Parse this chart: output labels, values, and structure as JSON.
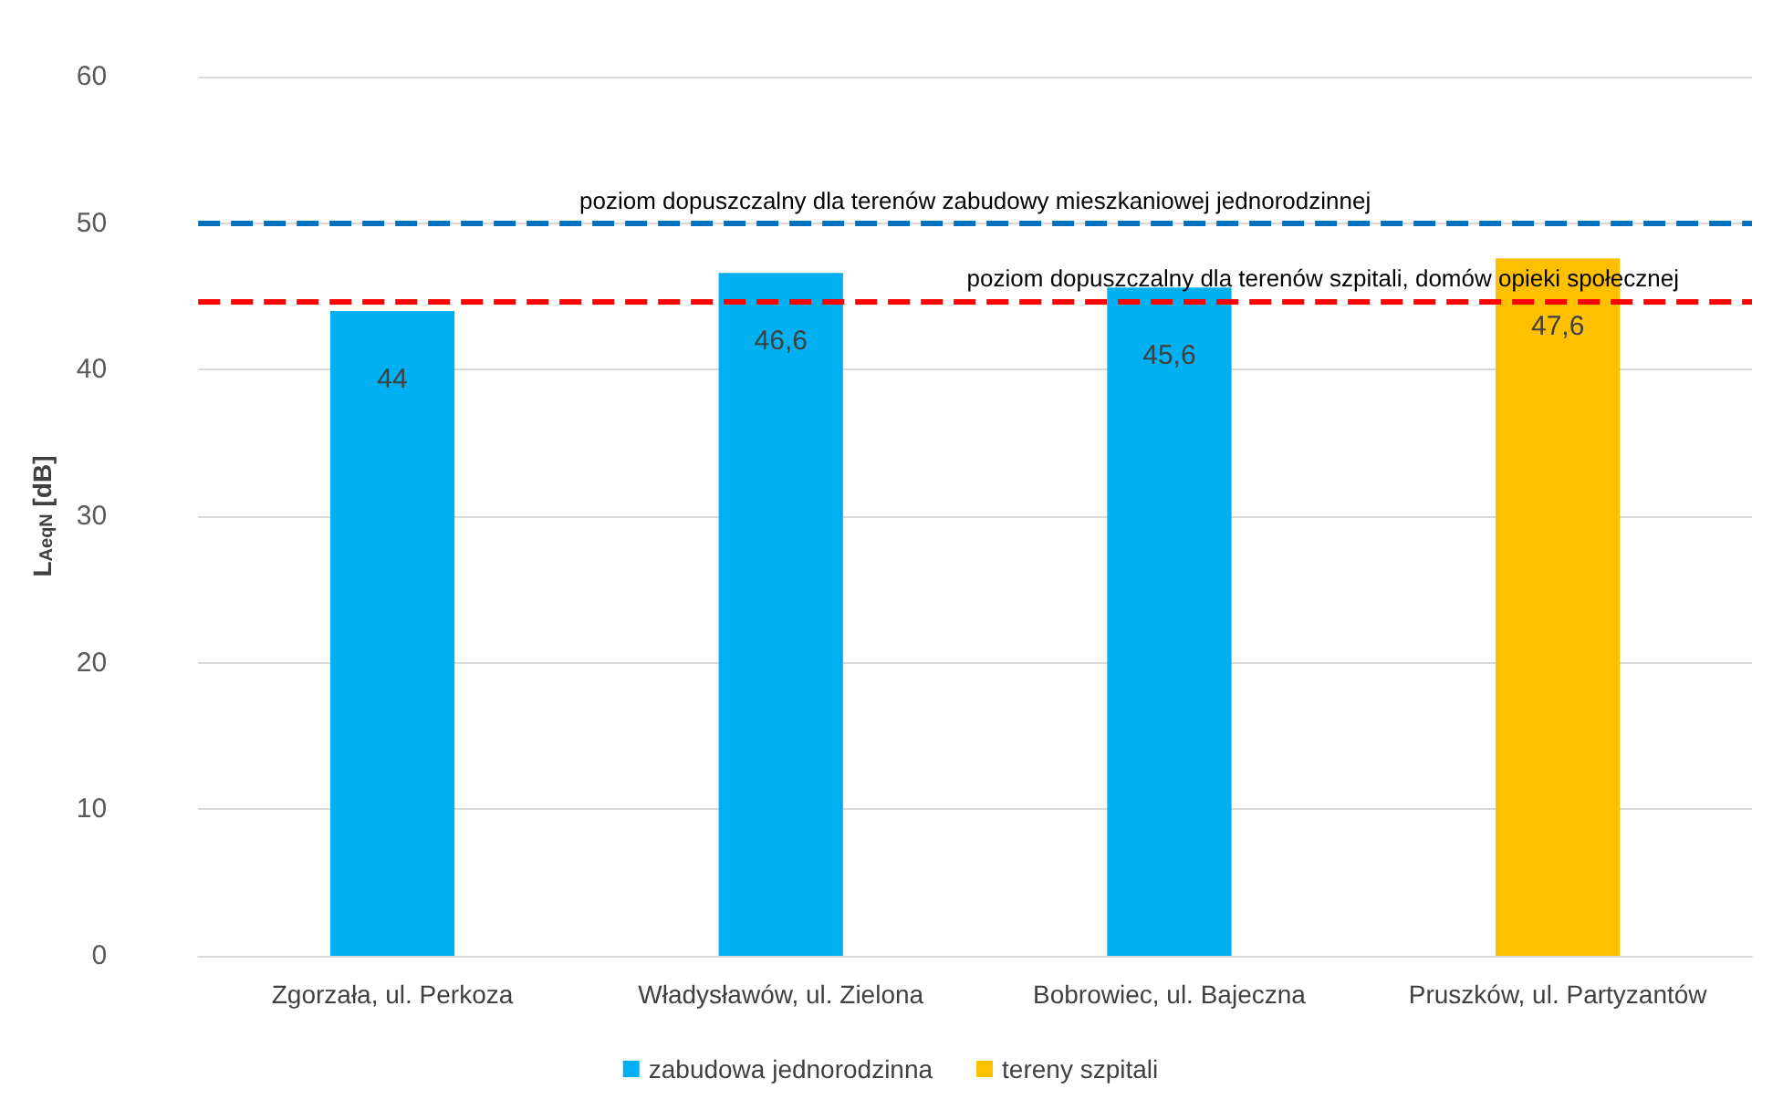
{
  "chart_data": {
    "type": "bar",
    "ylabel": "L$_{AeqN}$ [dB]",
    "categories": [
      "Zgorzała, ul. Perkoza",
      "Władysławów, ul. Zielona",
      "Bobrowiec, ul. Bajeczna",
      "Pruszków, ul. Partyzantów"
    ],
    "series": [
      {
        "name": "zabudowa jednorodzinna",
        "color": "#00b0f0",
        "values": [
          44,
          46.6,
          45.6,
          null
        ],
        "value_labels": [
          "44",
          "46,6",
          "45,6",
          null
        ]
      },
      {
        "name": "tereny szpitali",
        "color": "#ffc000",
        "values": [
          null,
          null,
          null,
          47.6
        ],
        "value_labels": [
          null,
          null,
          null,
          "47,6"
        ]
      }
    ],
    "ylim": [
      0,
      60
    ],
    "yticks": [
      0,
      10,
      20,
      30,
      40,
      50,
      60
    ],
    "grid": "y",
    "legend": "bottom",
    "ref_lines": [
      {
        "axis": "y",
        "value": 50,
        "label": "poziom dopuszczalny dla terenów zabudowy mieszkaniowej jednorodzinnej",
        "color": "#0070c0",
        "line_style": "dashed"
      },
      {
        "axis": "y",
        "value": 44.7,
        "label": "poziom dopuszczalny dla terenów szpitali, domów opieki społecznej",
        "color": "#ff0000",
        "line_style": "dashed"
      }
    ]
  }
}
